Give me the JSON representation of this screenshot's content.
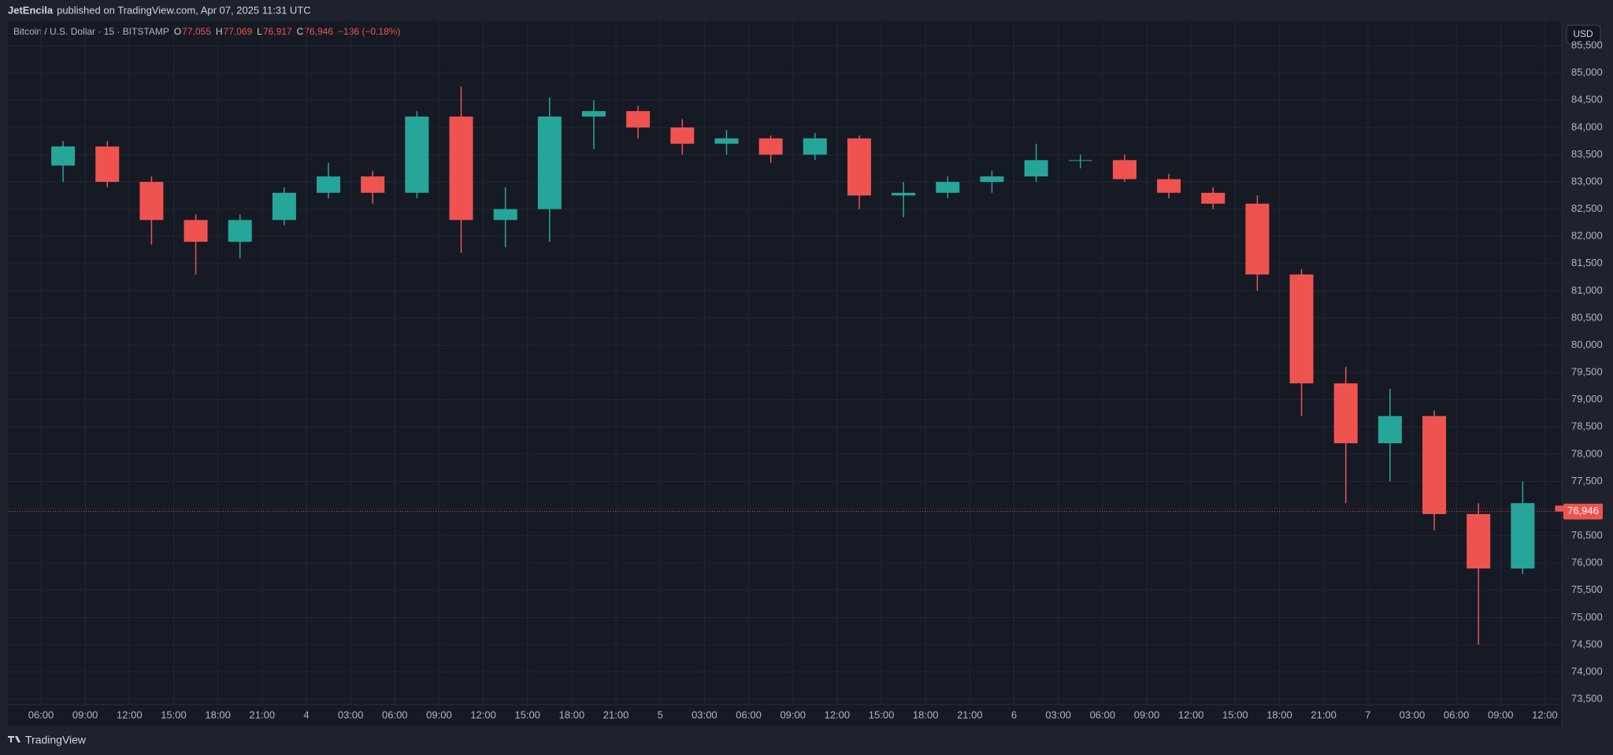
{
  "header": {
    "publisher": "JetEncila",
    "published_text": "published on TradingView.com, Apr 07, 2025 11:31 UTC",
    "footer_brand": "TradingView",
    "currency_button": "USD"
  },
  "chart_data": {
    "type": "candlestick",
    "title": "Bitcoin / U.S. Dollar · 15 · BITSTAMP",
    "ohlc_legend": [
      {
        "label": "O",
        "value": "77,055"
      },
      {
        "label": "H",
        "value": "77,069"
      },
      {
        "label": "L",
        "value": "76,917"
      },
      {
        "label": "C",
        "value": "76,946"
      }
    ],
    "change": "−136 (−0.18%)",
    "categories": [
      "06:00",
      "09:00",
      "12:00",
      "15:00",
      "18:00",
      "21:00",
      "4",
      "03:00",
      "06:00",
      "09:00",
      "12:00",
      "15:00",
      "18:00",
      "21:00",
      "5",
      "03:00",
      "06:00",
      "09:00",
      "12:00",
      "15:00",
      "18:00",
      "21:00",
      "6",
      "03:00",
      "06:00",
      "09:00",
      "12:00",
      "15:00",
      "18:00",
      "21:00",
      "7",
      "03:00",
      "06:00",
      "09:00",
      "12:00"
    ],
    "open": [
      83300,
      83650,
      83000,
      82300,
      81900,
      82300,
      82800,
      83100,
      82800,
      84200,
      82300,
      82500,
      84200,
      84300,
      84000,
      83700,
      83800,
      83500,
      83800,
      82750,
      82800,
      83000,
      83100,
      83400,
      83400,
      83050,
      82800,
      82600,
      81300,
      79300,
      78200,
      78700,
      76900,
      75900,
      77055
    ],
    "high": [
      83750,
      83750,
      83100,
      82400,
      82400,
      82900,
      83350,
      83200,
      84300,
      84750,
      82900,
      84550,
      84500,
      84400,
      84150,
      83950,
      83850,
      83900,
      83850,
      83000,
      83100,
      83200,
      83700,
      83500,
      83500,
      83150,
      82900,
      82750,
      81400,
      79600,
      79200,
      78800,
      77100,
      77500,
      77069
    ],
    "low": [
      83000,
      82900,
      81850,
      81300,
      81600,
      82200,
      82700,
      82600,
      82700,
      81700,
      81800,
      81900,
      83600,
      83800,
      83500,
      83500,
      83350,
      83400,
      82500,
      82350,
      82700,
      82800,
      83000,
      83250,
      83000,
      82700,
      82500,
      81000,
      78700,
      77100,
      77500,
      76600,
      74500,
      75800,
      76917
    ],
    "close": [
      83650,
      83000,
      82300,
      81900,
      82300,
      82800,
      83100,
      82800,
      84200,
      82300,
      82500,
      84200,
      84300,
      84000,
      83700,
      83800,
      83500,
      83800,
      82750,
      82800,
      83000,
      83100,
      83400,
      83400,
      83050,
      82800,
      82600,
      81300,
      79300,
      78200,
      78700,
      76900,
      75900,
      77100,
      76946
    ],
    "up_color": "#26a69a",
    "down_color": "#ef5350",
    "last_price": {
      "value": 76946,
      "label": "76,946"
    },
    "ylim": [
      73400,
      85950
    ],
    "yticks": [
      {
        "value": 73500,
        "label": "73,500"
      },
      {
        "value": 74000,
        "label": "74,000"
      },
      {
        "value": 74500,
        "label": "74,500"
      },
      {
        "value": 75000,
        "label": "75,000"
      },
      {
        "value": 75500,
        "label": "75,500"
      },
      {
        "value": 76000,
        "label": "76,000"
      },
      {
        "value": 76500,
        "label": "76,500"
      },
      {
        "value": 77000,
        "label": "77,000"
      },
      {
        "value": 77500,
        "label": "77,500"
      },
      {
        "value": 78000,
        "label": "78,000"
      },
      {
        "value": 78500,
        "label": "78,500"
      },
      {
        "value": 79000,
        "label": "79,000"
      },
      {
        "value": 79500,
        "label": "79,500"
      },
      {
        "value": 80000,
        "label": "80,000"
      },
      {
        "value": 80500,
        "label": "80,500"
      },
      {
        "value": 81000,
        "label": "81,000"
      },
      {
        "value": 81500,
        "label": "81,500"
      },
      {
        "value": 82000,
        "label": "82,000"
      },
      {
        "value": 82500,
        "label": "82,500"
      },
      {
        "value": 83000,
        "label": "83,000"
      },
      {
        "value": 83500,
        "label": "83,500"
      },
      {
        "value": 84000,
        "label": "84,000"
      },
      {
        "value": 84500,
        "label": "84,500"
      },
      {
        "value": 85000,
        "label": "85,000"
      },
      {
        "value": 85500,
        "label": "85,500"
      }
    ],
    "grid": true
  }
}
